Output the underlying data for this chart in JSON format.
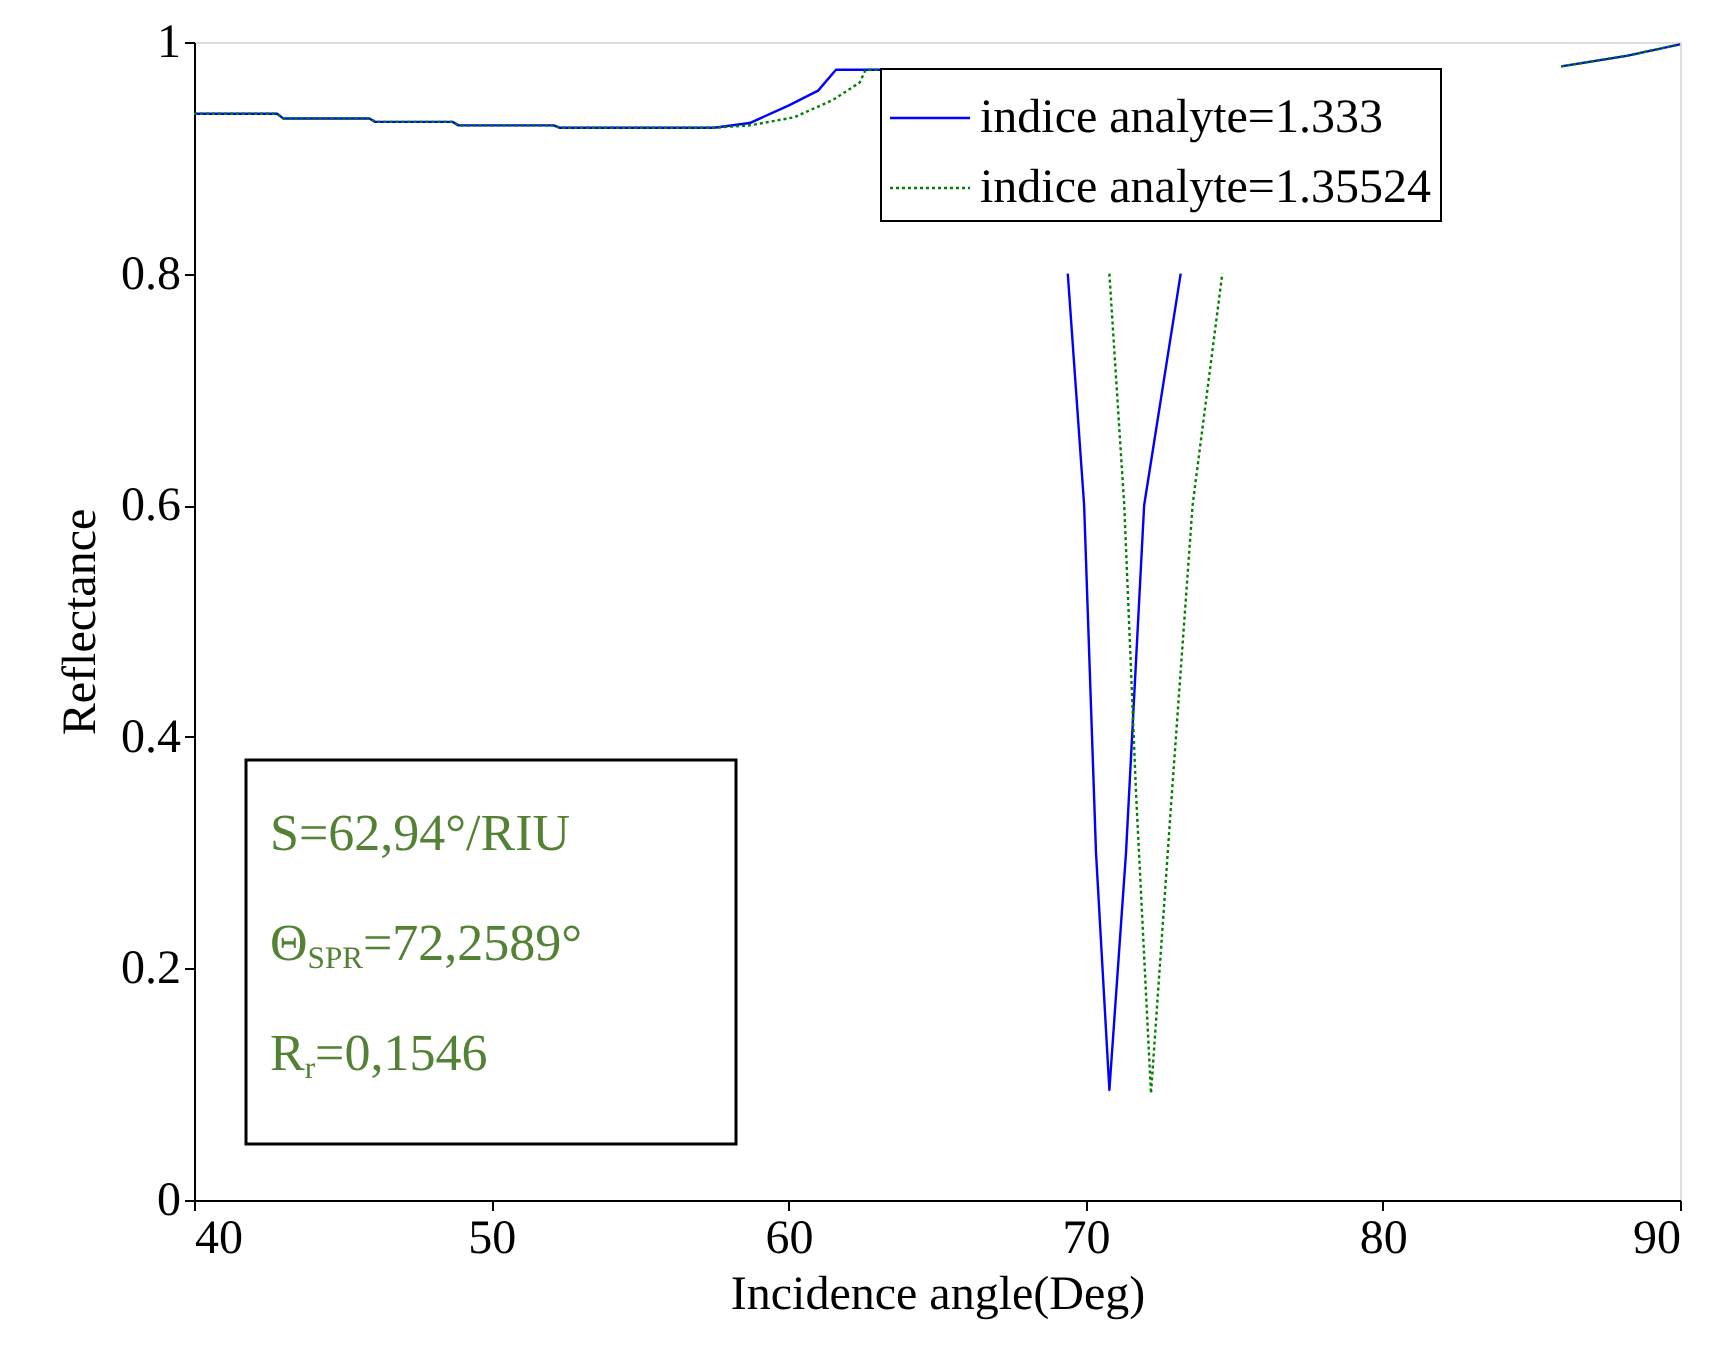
{
  "chart_data": {
    "type": "line",
    "xlabel": "Incidence angle(Deg)",
    "ylabel": "Reflectance",
    "xlim": [
      40,
      90
    ],
    "xticks": [
      40,
      50,
      60,
      70,
      80,
      90
    ],
    "ylim": [
      0,
      1
    ],
    "yticks": [
      0,
      0.2,
      0.4,
      0.6,
      0.8,
      1
    ],
    "grid": false,
    "legend": "top right",
    "marker": "none",
    "annotations": [
      "S=62,94°/RIU",
      "Θ$_{SPR}$=72,2589°",
      "R$_{r}$=0,1546"
    ],
    "series": [
      {
        "name": "indice analyte=1.333",
        "color": "#0000ff",
        "line_style": "solid",
        "x": [
          40,
          42.8,
          43,
          45.9,
          46.1,
          48.7,
          48.9,
          52.1,
          52.3,
          57.5,
          58.7,
          60,
          61,
          61.6,
          63.1,
          63.2,
          69.4,
          69.95,
          70.35,
          70.8,
          71.36,
          71.97,
          73.2,
          73.5,
          86,
          88.2,
          90
        ],
        "values": [
          0.938,
          0.938,
          0.934,
          0.934,
          0.931,
          0.931,
          0.928,
          0.928,
          0.926,
          0.926,
          0.93,
          0.945,
          0.958,
          0.976,
          0.976,
          null,
          0.8,
          0.6,
          0.3,
          0.095,
          0.3,
          0.6,
          0.8,
          null,
          0.979,
          0.988,
          0.998
        ]
      },
      {
        "name": "indice analyte=1.35524",
        "color": "#008000",
        "line_style": "dotted",
        "x": [
          40,
          42.8,
          43,
          45.9,
          46.1,
          48.7,
          48.9,
          52.1,
          52.3,
          57.5,
          58.7,
          60.2,
          61.5,
          62.4,
          62.6,
          63.1,
          63.2,
          70.8,
          71.3,
          71.7,
          72.2,
          72.9,
          73.6,
          74.6,
          74.9,
          86,
          88.2,
          90
        ],
        "values": [
          0.938,
          0.938,
          0.934,
          0.934,
          0.931,
          0.931,
          0.928,
          0.928,
          0.926,
          0.926,
          0.928,
          0.935,
          0.95,
          0.965,
          0.976,
          0.976,
          null,
          0.8,
          0.6,
          0.35,
          0.092,
          0.35,
          0.6,
          0.8,
          null,
          0.979,
          0.988,
          0.998
        ]
      }
    ]
  }
}
